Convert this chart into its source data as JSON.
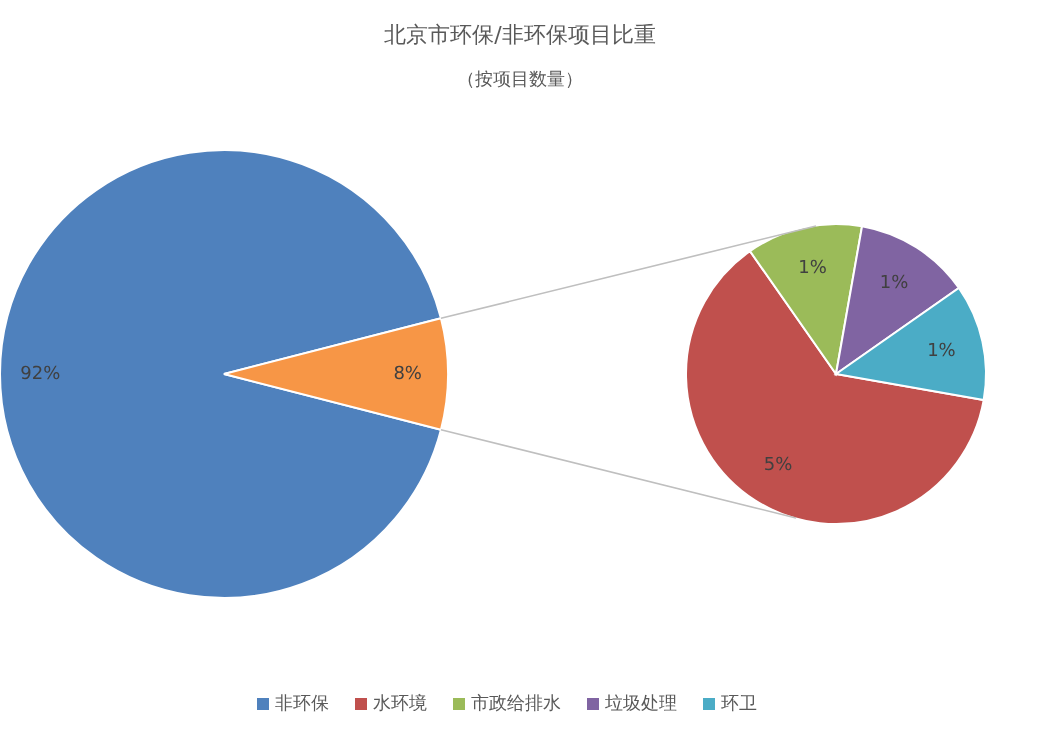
{
  "chart_data": [
    {
      "type": "pie",
      "title": "北京市环保/非环保项目比重",
      "subtitle": "（按项目数量）",
      "categories": [
        "非环保",
        null
      ],
      "values": [
        92,
        8
      ],
      "colors": [
        "#4f81bd",
        "#f79646"
      ],
      "value_labels": [
        "92%",
        "8%"
      ],
      "legend": "bottom"
    },
    {
      "type": "pie",
      "categories": [
        "水环境",
        "市政给排水",
        "垃圾处理",
        "环卫"
      ],
      "values": [
        5,
        1,
        1,
        1
      ],
      "colors": [
        "#c0504d",
        "#9bbb59",
        "#8064a2",
        "#4bacc6"
      ],
      "value_labels": [
        "5%",
        "1%",
        "1%",
        "1%"
      ],
      "legend": "bottom"
    }
  ]
}
